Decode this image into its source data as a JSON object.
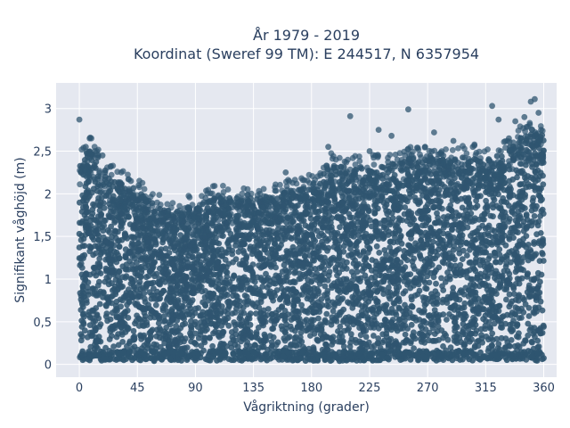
{
  "chart_data": {
    "type": "scatter",
    "title_line1": "År 1979 - 2019",
    "title_line2": "Koordinat (Sweref 99 TM): E 244517, N 6357954",
    "xlabel": "Vågriktning (grader)",
    "ylabel": "Signifikant våghöjd (m)",
    "xlim": [
      -18,
      370
    ],
    "ylim": [
      -0.15,
      3.3
    ],
    "x_ticks": [
      0,
      45,
      90,
      135,
      180,
      225,
      270,
      315,
      360
    ],
    "x_tick_labels": [
      "0",
      "45",
      "90",
      "135",
      "180",
      "225",
      "270",
      "315",
      "360"
    ],
    "y_ticks": [
      0,
      0.5,
      1,
      1.5,
      2,
      2.5,
      3
    ],
    "y_tick_labels": [
      "0",
      "0,5",
      "1",
      "1,5",
      "2",
      "2,5",
      "3"
    ],
    "grid": true,
    "marker_color": "#2f5570",
    "background_color": "#e5e8f0",
    "upper_envelope": {
      "x": [
        0,
        10,
        20,
        30,
        45,
        60,
        75,
        90,
        105,
        120,
        135,
        150,
        165,
        180,
        195,
        210,
        225,
        240,
        255,
        270,
        285,
        300,
        315,
        330,
        345,
        360
      ],
      "y": [
        2.4,
        2.55,
        2.3,
        2.15,
        2.05,
        1.85,
        1.8,
        1.85,
        1.95,
        1.95,
        1.95,
        2.0,
        2.05,
        2.1,
        2.35,
        2.3,
        2.3,
        2.35,
        2.4,
        2.45,
        2.4,
        2.45,
        2.4,
        2.5,
        2.7,
        2.7
      ]
    },
    "outliers": [
      {
        "x": 0,
        "y": 2.87
      },
      {
        "x": 8,
        "y": 2.65
      },
      {
        "x": 5,
        "y": 2.55
      },
      {
        "x": 12,
        "y": 2.5
      },
      {
        "x": 18,
        "y": 2.45
      },
      {
        "x": 40,
        "y": 2.15
      },
      {
        "x": 46,
        "y": 2.1
      },
      {
        "x": 160,
        "y": 2.25
      },
      {
        "x": 193,
        "y": 2.55
      },
      {
        "x": 210,
        "y": 2.91
      },
      {
        "x": 225,
        "y": 2.5
      },
      {
        "x": 232,
        "y": 2.75
      },
      {
        "x": 242,
        "y": 2.68
      },
      {
        "x": 255,
        "y": 2.99
      },
      {
        "x": 268,
        "y": 2.55
      },
      {
        "x": 275,
        "y": 2.72
      },
      {
        "x": 290,
        "y": 2.62
      },
      {
        "x": 305,
        "y": 2.55
      },
      {
        "x": 320,
        "y": 3.03
      },
      {
        "x": 325,
        "y": 2.87
      },
      {
        "x": 338,
        "y": 2.85
      },
      {
        "x": 345,
        "y": 2.9
      },
      {
        "x": 350,
        "y": 3.08
      },
      {
        "x": 353,
        "y": 3.11
      },
      {
        "x": 356,
        "y": 2.95
      },
      {
        "x": 358,
        "y": 2.75
      },
      {
        "x": 333,
        "y": 2.65
      }
    ]
  }
}
